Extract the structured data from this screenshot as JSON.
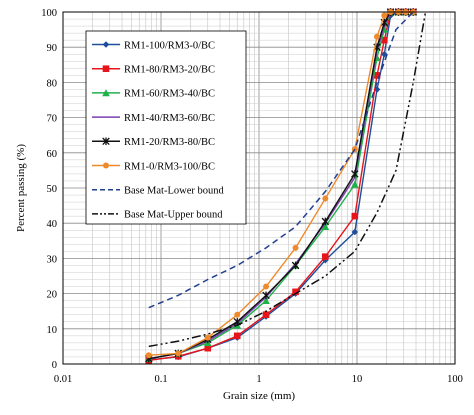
{
  "chart_data": {
    "type": "line",
    "xlabel": "Grain size (mm)",
    "ylabel": "Percent passing  (%)",
    "xscale": "log",
    "xlim": [
      0.01,
      100
    ],
    "ylim": [
      0,
      100
    ],
    "x_ticks": [
      0.01,
      0.1,
      1,
      10,
      100
    ],
    "x_tick_labels": [
      "0.01",
      "0.1",
      "1",
      "10",
      "100"
    ],
    "y_ticks": [
      0,
      10,
      20,
      30,
      40,
      50,
      60,
      70,
      80,
      90,
      100
    ],
    "y_tick_labels": [
      "0",
      "10",
      "20",
      "30",
      "40",
      "50",
      "60",
      "70",
      "80",
      "90",
      "100"
    ],
    "grid": true,
    "legend_position": "upper-left",
    "series": [
      {
        "name": "RM1-100/RM3-0/BC",
        "color": "#1f4e9c",
        "marker": "diamond",
        "dash": "solid",
        "x": [
          0.075,
          0.15,
          0.3,
          0.6,
          1.18,
          2.36,
          4.75,
          9.5,
          16,
          19,
          22,
          26.5,
          31.5,
          37.5
        ],
        "y": [
          1.2,
          2,
          4.5,
          7.5,
          13.5,
          20,
          29.5,
          37.5,
          78,
          88,
          99,
          100,
          100,
          100
        ]
      },
      {
        "name": "RM1-80/RM3-20/BC",
        "color": "#e8141b",
        "marker": "square",
        "dash": "solid",
        "x": [
          0.075,
          0.15,
          0.3,
          0.6,
          1.18,
          2.36,
          4.75,
          9.5,
          16,
          19,
          22,
          26.5,
          31.5,
          37.5
        ],
        "y": [
          1,
          2.2,
          4.5,
          8,
          14,
          20.5,
          30.5,
          42,
          82,
          92,
          100,
          100,
          100,
          100
        ]
      },
      {
        "name": "RM1-60/RM3-40/BC",
        "color": "#1fb24a",
        "marker": "triangle",
        "dash": "solid",
        "x": [
          0.075,
          0.15,
          0.3,
          0.6,
          1.18,
          2.36,
          4.75,
          9.5,
          16,
          19,
          22,
          26.5,
          31.5,
          37.5
        ],
        "y": [
          1.5,
          3,
          6,
          11,
          18,
          28,
          39,
          51,
          87,
          95,
          100,
          100,
          100,
          100
        ]
      },
      {
        "name": "RM1-40/RM3-60/BC",
        "color": "#7b3fb0",
        "marker": "none",
        "dash": "solid",
        "x": [
          0.075,
          0.15,
          0.3,
          0.6,
          1.18,
          2.36,
          4.75,
          9.5,
          16,
          19,
          22,
          26.5,
          31.5,
          37.5
        ],
        "y": [
          1.5,
          3,
          6.5,
          11.5,
          19,
          28.5,
          40,
          53,
          89,
          96,
          100,
          100,
          100,
          100
        ]
      },
      {
        "name": "RM1-20/RM3-80/BC",
        "color": "#111111",
        "marker": "star",
        "dash": "solid",
        "x": [
          0.075,
          0.15,
          0.3,
          0.6,
          1.18,
          2.36,
          4.75,
          9.5,
          16,
          19,
          22,
          26.5,
          31.5,
          37.5
        ],
        "y": [
          1.5,
          3,
          7,
          12,
          19.5,
          28,
          40.5,
          54,
          90,
          97,
          100,
          100,
          100,
          100
        ]
      },
      {
        "name": "RM1-0/RM3-100/BC",
        "color": "#ee8a2b",
        "marker": "circle",
        "dash": "solid",
        "x": [
          0.075,
          0.15,
          0.3,
          0.6,
          1.18,
          2.36,
          4.75,
          9.5,
          16,
          19,
          22,
          26.5,
          31.5,
          37.5
        ],
        "y": [
          2.5,
          3,
          7.5,
          14,
          22,
          33,
          47,
          61,
          93,
          99,
          100,
          100,
          100,
          100
        ]
      },
      {
        "name": "Base Mat-Lower bound",
        "color": "#1f3f8f",
        "marker": "none",
        "dash": "dashed",
        "x": [
          0.075,
          0.15,
          0.3,
          0.6,
          1.18,
          2.36,
          4.75,
          9.5,
          16,
          25,
          37.5
        ],
        "y": [
          16,
          19.5,
          24,
          28,
          33,
          39,
          49,
          61,
          80,
          95,
          100
        ]
      },
      {
        "name": "Base Mat-Upper bound",
        "color": "#111111",
        "marker": "none",
        "dash": "dashdotdot",
        "x": [
          0.075,
          0.15,
          0.3,
          0.6,
          1.18,
          2.36,
          4.75,
          9.5,
          16,
          25,
          37.5,
          50
        ],
        "y": [
          5,
          6.5,
          8.5,
          11,
          15,
          20,
          25,
          32,
          43,
          55,
          80,
          100
        ]
      }
    ]
  }
}
